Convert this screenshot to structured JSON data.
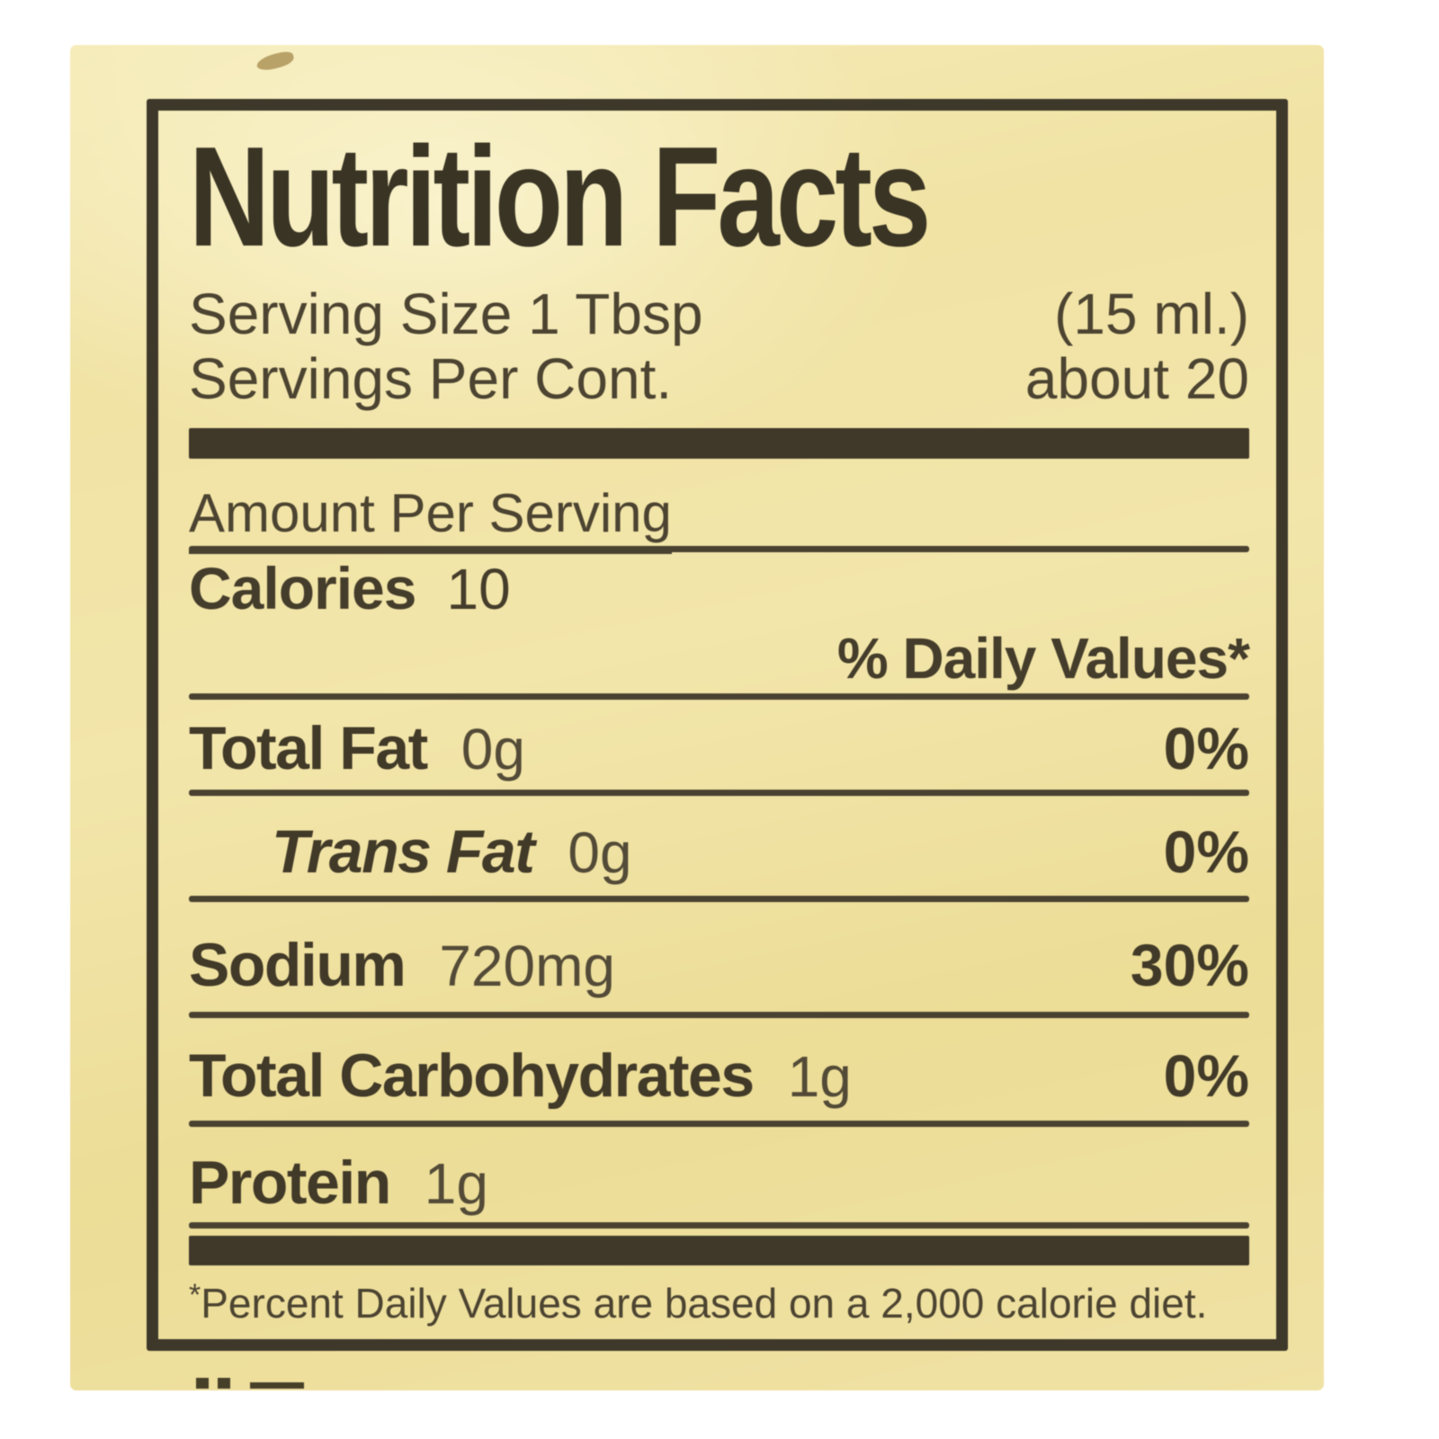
{
  "label": {
    "title": "Nutrition Facts",
    "serving": {
      "size_label": "Serving Size 1 Tbsp",
      "size_metric": "(15 ml.)",
      "per_container_label": "Servings Per Cont.",
      "per_container_value": "about 20"
    },
    "amount_per_serving": "Amount Per Serving",
    "calories": {
      "name": "Calories",
      "value": "10"
    },
    "daily_values_header": "% Daily Values*",
    "rows": [
      {
        "name": "Total Fat",
        "value": "0g",
        "percent": "0%"
      },
      {
        "name": "Trans Fat",
        "value": "0g",
        "percent": "0%"
      },
      {
        "name": "Sodium",
        "value": "720mg",
        "percent": "30%"
      },
      {
        "name": "Total Carbohydrates",
        "value": "1g",
        "percent": "0%"
      },
      {
        "name": "Protein",
        "value": "1g",
        "percent": ""
      }
    ],
    "footnote_marker": "*",
    "footnote": "Percent Daily Values are based on a 2,000 calorie diet.",
    "colors": {
      "sticker_background": "#f0e2a4",
      "ink": "#423a28",
      "page_background": "#ffffff"
    }
  }
}
